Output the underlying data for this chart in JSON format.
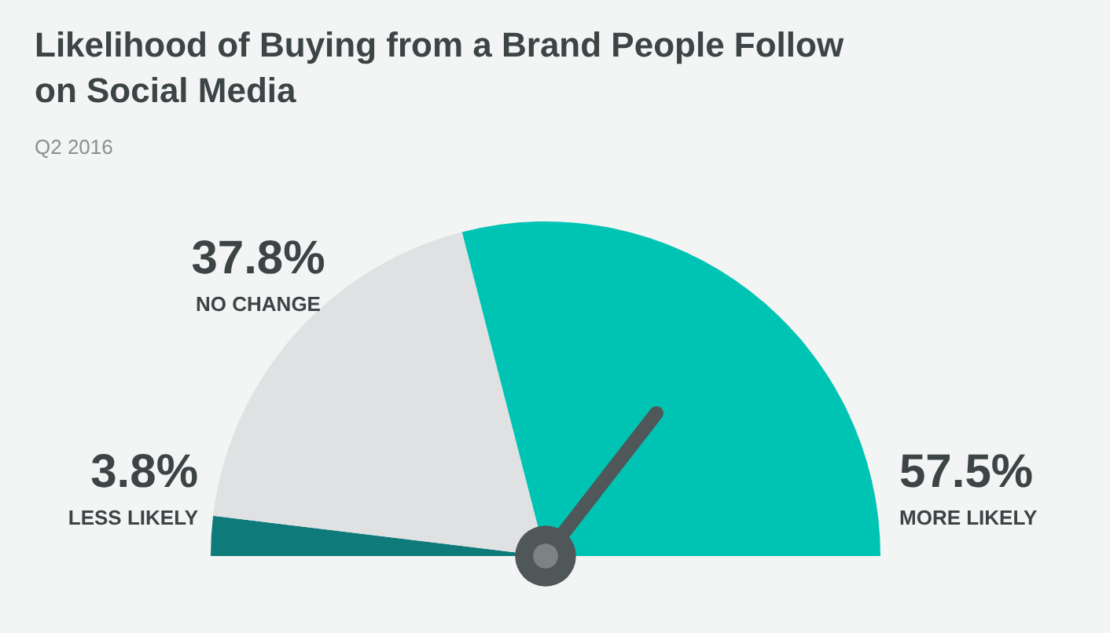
{
  "chart_data": {
    "type": "pie",
    "title": "Likelihood of Buying from a Brand People Follow on Social Media",
    "subtitle": "Q2 2016",
    "categories": [
      "LESS LIKELY",
      "NO CHANGE",
      "MORE LIKELY"
    ],
    "values": [
      3.8,
      37.8,
      57.5
    ],
    "value_labels": [
      "3.8%",
      "37.8%",
      "57.5%"
    ],
    "colors": [
      "#0e7a7a",
      "#dfe1e3",
      "#00c4b3"
    ],
    "needle": "MORE LIKELY"
  }
}
